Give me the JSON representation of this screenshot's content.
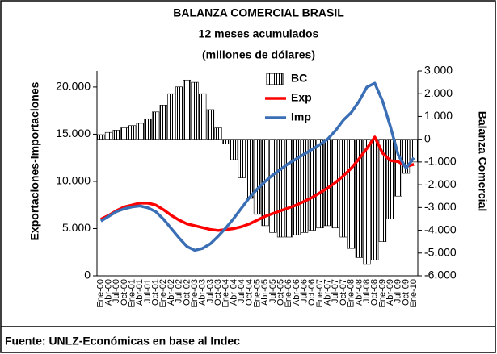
{
  "chart_data": {
    "type": "bar",
    "title": [
      "BALANZA COMERCIAL BRASIL",
      "12 meses acumulados",
      "(millones de dólares)"
    ],
    "ylabel": "Exportaciones-Importaciones",
    "y2label": "Balanza Comercial",
    "source": "Fuente: UNLZ-Económicas en base al Indec",
    "categories": [
      "Ene-00",
      "Abr-00",
      "Jul-00",
      "Oct-00",
      "Ene-01",
      "Abr-01",
      "Jul-01",
      "Oct-01",
      "Ene-02",
      "Abr-02",
      "Jul-02",
      "Oct-02",
      "Ene-03",
      "Abr-03",
      "Jul-03",
      "Oct-03",
      "Ene-04",
      "Abr-04",
      "Jul-04",
      "Oct-04",
      "Ene-05",
      "Abr-05",
      "Jul-05",
      "Oct-05",
      "Ene-06",
      "Abr-06",
      "Jul-06",
      "Oct-06",
      "Ene-07",
      "Abr-07",
      "Jul-07",
      "Oct-07",
      "Ene-08",
      "Abr-08",
      "Jul-08",
      "Oct-08",
      "Ene-09",
      "Abr-09",
      "Jul-09",
      "Oct-09",
      "Ene-10"
    ],
    "series": [
      {
        "name": "BC",
        "type": "bar",
        "axis": "y2",
        "color": "#000000",
        "values": [
          200,
          300,
          400,
          500,
          600,
          700,
          900,
          1200,
          1500,
          2000,
          2300,
          2600,
          2500,
          2000,
          1300,
          500,
          -200,
          -900,
          -1700,
          -2600,
          -3300,
          -3800,
          -4100,
          -4300,
          -4300,
          -4200,
          -4100,
          -4000,
          -3900,
          -3800,
          -3900,
          -4300,
          -4800,
          -5200,
          -5500,
          -5300,
          -4500,
          -3500,
          -2500,
          -1500,
          -1000
        ]
      },
      {
        "name": "Exp",
        "type": "line",
        "color": "#ff0000",
        "values": [
          6000,
          6400,
          6900,
          7300,
          7500,
          7700,
          7700,
          7500,
          7000,
          6400,
          5900,
          5500,
          5300,
          5100,
          4900,
          4800,
          4900,
          5000,
          5200,
          5500,
          5900,
          6300,
          6600,
          6900,
          7200,
          7500,
          7900,
          8300,
          8800,
          9300,
          9900,
          10600,
          11400,
          12400,
          13500,
          14700,
          13000,
          12200,
          12100,
          11600,
          11800
        ]
      },
      {
        "name": "Imp",
        "type": "line",
        "color": "#3a6eb5",
        "values": [
          5800,
          6300,
          6800,
          7100,
          7300,
          7400,
          7200,
          6800,
          6000,
          5000,
          4000,
          3100,
          2700,
          2900,
          3400,
          4200,
          5100,
          6100,
          7200,
          8300,
          9200,
          10000,
          10700,
          11300,
          11900,
          12400,
          12900,
          13400,
          13900,
          14500,
          15400,
          16500,
          17300,
          18500,
          20000,
          20400,
          18500,
          15800,
          12800,
          11400,
          12500
        ]
      }
    ],
    "ylim": [
      0,
      21700
    ],
    "yticks": [
      0,
      {
        "value": 5000,
        "label": "5.000"
      },
      {
        "value": 10000,
        "label": "10.000"
      },
      {
        "value": 15000,
        "label": "15.000"
      },
      {
        "value": 20000,
        "label": "20.000"
      }
    ],
    "y2lim": [
      -6000,
      3000
    ],
    "y2ticks": [
      {
        "value": -6000,
        "label": "-6.000"
      },
      {
        "value": -5000,
        "label": "-5.000"
      },
      {
        "value": -4000,
        "label": "-4.000"
      },
      {
        "value": -3000,
        "label": "-3.000"
      },
      {
        "value": -2000,
        "label": "-2.000"
      },
      {
        "value": -1000,
        "label": "-1.000"
      },
      0,
      {
        "value": 1000,
        "label": "1.000"
      },
      {
        "value": 2000,
        "label": "2.000"
      },
      {
        "value": 3000,
        "label": "3.000"
      }
    ],
    "legend": "upper center"
  }
}
